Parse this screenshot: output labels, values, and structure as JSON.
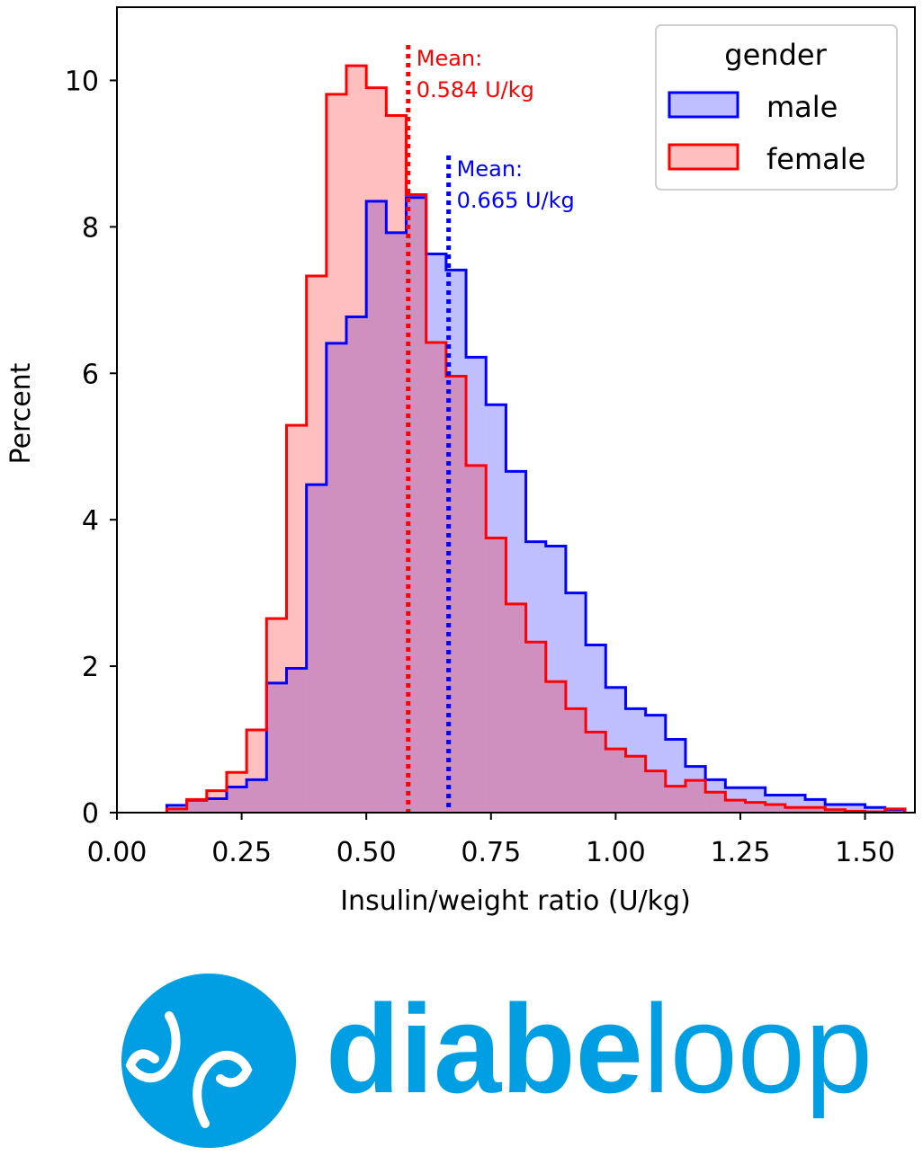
{
  "chart_data": {
    "type": "histogram-step",
    "xlabel": "Insulin/weight ratio (U/kg)",
    "ylabel": "Percent",
    "xlim": [
      0,
      1.6
    ],
    "ylim": [
      0,
      11
    ],
    "xticks": [
      "0.00",
      "0.25",
      "0.50",
      "0.75",
      "1.00",
      "1.25",
      "1.50"
    ],
    "xtick_values": [
      0,
      0.25,
      0.5,
      0.75,
      1.0,
      1.25,
      1.5
    ],
    "yticks": [
      "0",
      "2",
      "4",
      "6",
      "8",
      "10"
    ],
    "ytick_values": [
      0,
      2,
      4,
      6,
      8,
      10
    ],
    "bin_start": 0.1,
    "bin_width": 0.04,
    "legend": {
      "title": "gender",
      "placement": "top-right"
    },
    "series": [
      {
        "name": "male",
        "color": "#0000ff",
        "fill": "rgba(0,0,255,0.25)",
        "values": [
          0.1,
          0.17,
          0.19,
          0.35,
          0.45,
          1.77,
          1.97,
          4.48,
          6.41,
          6.77,
          8.35,
          7.92,
          8.4,
          7.63,
          7.41,
          6.22,
          5.57,
          4.66,
          3.7,
          3.64,
          3.0,
          2.29,
          1.71,
          1.42,
          1.33,
          1.0,
          0.63,
          0.45,
          0.34,
          0.34,
          0.24,
          0.24,
          0.18,
          0.11,
          0.11,
          0.07,
          0.04
        ],
        "mean": 0.665,
        "mean_label_1": "Mean:",
        "mean_label_2": "0.665 U/kg"
      },
      {
        "name": "female",
        "color": "#ff0000",
        "fill": "rgba(255,0,0,0.25)",
        "values": [
          0.05,
          0.18,
          0.3,
          0.55,
          1.13,
          2.65,
          5.29,
          7.33,
          9.81,
          10.2,
          9.9,
          9.52,
          8.44,
          6.42,
          5.96,
          4.74,
          3.75,
          2.85,
          2.33,
          1.79,
          1.42,
          1.1,
          0.87,
          0.77,
          0.57,
          0.36,
          0.44,
          0.28,
          0.17,
          0.14,
          0.11,
          0.07,
          0.07,
          0.04,
          0.02,
          0.01,
          0.05
        ],
        "mean": 0.584,
        "mean_label_1": "Mean:",
        "mean_label_2": "0.584 U/kg"
      }
    ]
  },
  "logo": {
    "text_bold": "diabe",
    "text_light": "loop",
    "color": "#009fe3"
  }
}
